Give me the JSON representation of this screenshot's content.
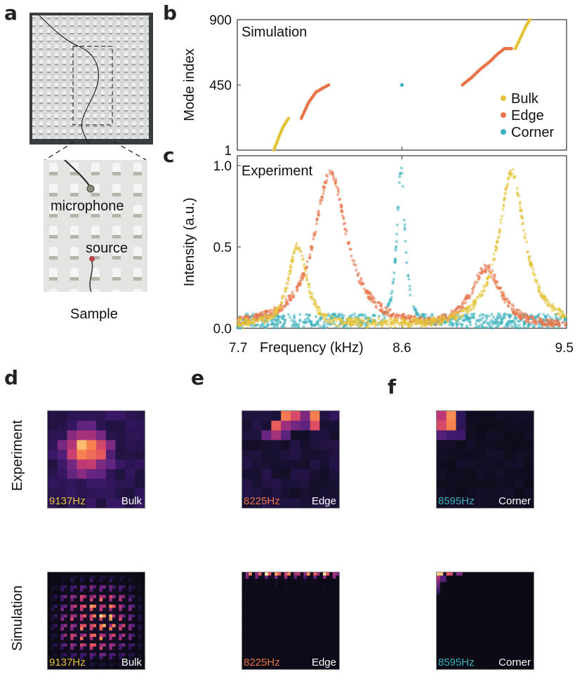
{
  "panels": {
    "a": "a",
    "b": "b",
    "c": "c",
    "d": "d",
    "e": "e",
    "f": "f"
  },
  "sample": {
    "microphone_label": "microphone",
    "source_label": "source",
    "caption": "Sample"
  },
  "colors": {
    "bulk": "#E3C33A",
    "edge": "#E8744A",
    "corner": "#3BB1BB"
  },
  "chart_data": [
    {
      "type": "scatter",
      "panel": "b",
      "title": "Simulation",
      "xlabel": "",
      "ylabel": "Mode index",
      "xlim": [
        7.7,
        9.5
      ],
      "ylim": [
        1,
        900
      ],
      "yticks": [
        "1",
        "450",
        "900"
      ],
      "grid": false,
      "legend_position": "right",
      "legend": [
        "Bulk",
        "Edge",
        "Corner"
      ],
      "series": [
        {
          "name": "Bulk",
          "points": [
            [
              7.9,
              1
            ],
            [
              7.93,
              100
            ],
            [
              7.95,
              160
            ],
            [
              7.98,
              220
            ],
            [
              9.22,
              700
            ],
            [
              9.25,
              780
            ],
            [
              9.28,
              860
            ],
            [
              9.3,
              900
            ]
          ]
        },
        {
          "name": "Edge",
          "points": [
            [
              8.05,
              220
            ],
            [
              8.09,
              330
            ],
            [
              8.13,
              400
            ],
            [
              8.17,
              430
            ],
            [
              8.2,
              450
            ],
            [
              8.93,
              450
            ],
            [
              8.98,
              500
            ],
            [
              9.03,
              560
            ],
            [
              9.08,
              610
            ],
            [
              9.12,
              660
            ],
            [
              9.16,
              700
            ],
            [
              9.2,
              700
            ]
          ]
        },
        {
          "name": "Corner",
          "points": [
            [
              8.6,
              450
            ]
          ]
        }
      ]
    },
    {
      "type": "scatter",
      "panel": "c",
      "title": "Experiment",
      "xlabel": "Frequency (kHz)",
      "ylabel": "Intensity (a.u.)",
      "xlim": [
        7.7,
        9.5
      ],
      "ylim": [
        0.0,
        1.0
      ],
      "xticks": [
        "7.7",
        "8.6",
        "9.5"
      ],
      "yticks": [
        "0.0",
        "0.5",
        "1.0"
      ],
      "grid": false,
      "series": [
        {
          "name": "Bulk",
          "peaks": [
            {
              "center": 8.03,
              "amplitude": 0.51,
              "width": 0.09
            },
            {
              "center": 9.2,
              "amplitude": 0.96,
              "width": 0.13
            }
          ],
          "baseline": 0.06
        },
        {
          "name": "Edge",
          "peaks": [
            {
              "center": 8.21,
              "amplitude": 0.96,
              "width": 0.16
            },
            {
              "center": 9.06,
              "amplitude": 0.37,
              "width": 0.15
            }
          ],
          "baseline": 0.03
        },
        {
          "name": "Corner",
          "peaks": [
            {
              "center": 8.595,
              "amplitude": 0.99,
              "width": 0.04
            }
          ],
          "baseline": 0.09
        }
      ]
    }
  ],
  "maps": {
    "row_labels": {
      "experiment": "Experiment",
      "simulation": "Simulation"
    },
    "experiment": [
      {
        "freq": "9137Hz",
        "type": "Bulk"
      },
      {
        "freq": "8225Hz",
        "type": "Edge"
      },
      {
        "freq": "8595Hz",
        "type": "Corner"
      }
    ],
    "simulation": [
      {
        "freq": "9137Hz",
        "type": "Bulk"
      },
      {
        "freq": "8225Hz",
        "type": "Edge"
      },
      {
        "freq": "8595Hz",
        "type": "Corner"
      }
    ]
  }
}
